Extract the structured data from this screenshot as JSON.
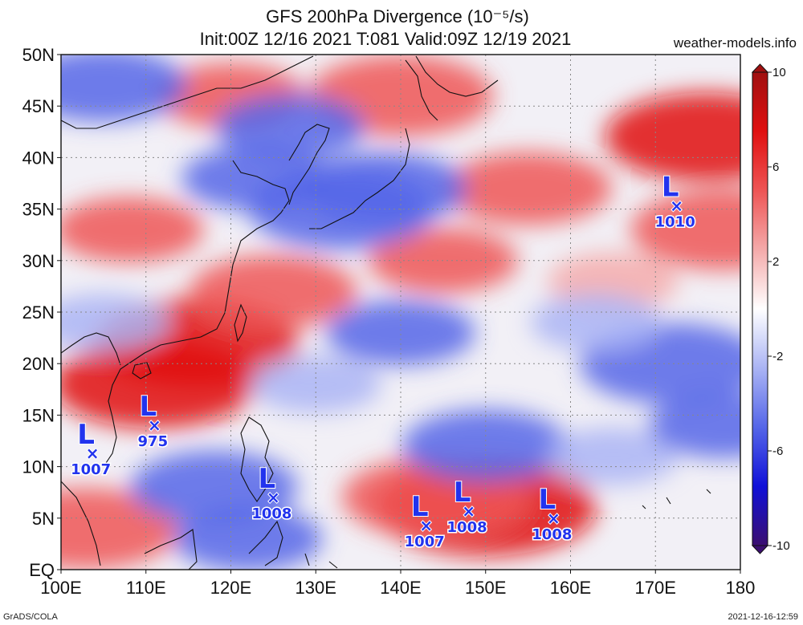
{
  "title": {
    "line1": "GFS 200hPa Divergence (10⁻⁵/s)",
    "line2": "Init:00Z 12/16 2021 T:081 Valid:09Z 12/19 2021"
  },
  "credit": "weather-models.info",
  "footer": {
    "left": "GrADS/COLA",
    "right": "2021-12-16-12:59"
  },
  "map": {
    "lon_range": [
      100,
      180
    ],
    "lat_range": [
      0,
      50
    ],
    "lat_labels": [
      {
        "lat": 50,
        "text": "50N"
      },
      {
        "lat": 45,
        "text": "45N"
      },
      {
        "lat": 40,
        "text": "40N"
      },
      {
        "lat": 35,
        "text": "35N"
      },
      {
        "lat": 30,
        "text": "30N"
      },
      {
        "lat": 25,
        "text": "25N"
      },
      {
        "lat": 20,
        "text": "20N"
      },
      {
        "lat": 15,
        "text": "15N"
      },
      {
        "lat": 10,
        "text": "10N"
      },
      {
        "lat": 5,
        "text": "5N"
      },
      {
        "lat": 0,
        "text": "EQ"
      }
    ],
    "lon_labels": [
      {
        "lon": 100,
        "text": "100E"
      },
      {
        "lon": 110,
        "text": "110E"
      },
      {
        "lon": 120,
        "text": "120E"
      },
      {
        "lon": 130,
        "text": "130E"
      },
      {
        "lon": 140,
        "text": "140E"
      },
      {
        "lon": 150,
        "text": "150E"
      },
      {
        "lon": 160,
        "text": "160E"
      },
      {
        "lon": 170,
        "text": "170E"
      },
      {
        "lon": 180,
        "text": "180"
      }
    ],
    "gridlines": "dotted"
  },
  "colorbar": {
    "ticks": [
      {
        "value": 10,
        "text": "10"
      },
      {
        "value": 6,
        "text": "6"
      },
      {
        "value": 2,
        "text": "2"
      },
      {
        "value": -2,
        "text": "-2"
      },
      {
        "value": -6,
        "text": "-6"
      },
      {
        "value": -10,
        "text": "-10"
      }
    ],
    "colors": [
      "#3b0f70",
      "#1010d8",
      "#5566e8",
      "#aab4f4",
      "#ffffff",
      "#f4aaaa",
      "#ee5555",
      "#e01010",
      "#a01010"
    ]
  },
  "lows": [
    {
      "lon": 103.7,
      "lat": 11.3,
      "pressure": "1007"
    },
    {
      "lon": 111.0,
      "lat": 14.0,
      "pressure": "975"
    },
    {
      "lon": 125.0,
      "lat": 7.0,
      "pressure": "1008"
    },
    {
      "lon": 143.0,
      "lat": 4.3,
      "pressure": "1007"
    },
    {
      "lon": 148.0,
      "lat": 5.7,
      "pressure": "1008"
    },
    {
      "lon": 158.0,
      "lat": 5.0,
      "pressure": "1008"
    },
    {
      "lon": 172.5,
      "lat": 35.3,
      "pressure": "1010"
    }
  ],
  "field_blobs": [
    {
      "lon": 116,
      "lat": 22,
      "value": 7
    },
    {
      "lon": 111,
      "lat": 18,
      "value": 7
    },
    {
      "lon": 150,
      "lat": 6,
      "value": 8
    },
    {
      "lon": 144,
      "lat": 7,
      "value": 6
    },
    {
      "lon": 176,
      "lat": 42,
      "value": 7
    },
    {
      "lon": 178,
      "lat": 33,
      "value": 6
    },
    {
      "lon": 155,
      "lat": 37,
      "value": 5
    },
    {
      "lon": 140,
      "lat": 46,
      "value": 6
    },
    {
      "lon": 125,
      "lat": 27,
      "value": 5
    },
    {
      "lon": 145,
      "lat": 30,
      "value": 4
    },
    {
      "lon": 165,
      "lat": 28,
      "value": 3
    },
    {
      "lon": 103,
      "lat": 4,
      "value": 6
    },
    {
      "lon": 108,
      "lat": 33,
      "value": 4
    },
    {
      "lon": 120,
      "lat": 46,
      "value": 4
    },
    {
      "lon": 133,
      "lat": 35,
      "value": -6
    },
    {
      "lon": 138,
      "lat": 37,
      "value": -5
    },
    {
      "lon": 123,
      "lat": 38,
      "value": -4
    },
    {
      "lon": 105,
      "lat": 47,
      "value": -5
    },
    {
      "lon": 127,
      "lat": 43,
      "value": -4
    },
    {
      "lon": 172,
      "lat": 20,
      "value": -6
    },
    {
      "lon": 150,
      "lat": 12,
      "value": -5
    },
    {
      "lon": 140,
      "lat": 23,
      "value": -4
    },
    {
      "lon": 118,
      "lat": 8,
      "value": -5
    },
    {
      "lon": 122,
      "lat": 3,
      "value": -4
    },
    {
      "lon": 163,
      "lat": 24,
      "value": -3
    },
    {
      "lon": 105,
      "lat": 24,
      "value": -3
    },
    {
      "lon": 130,
      "lat": 18,
      "value": -3
    },
    {
      "lon": 165,
      "lat": 11,
      "value": -3
    },
    {
      "lon": 178,
      "lat": 14,
      "value": -4
    }
  ]
}
